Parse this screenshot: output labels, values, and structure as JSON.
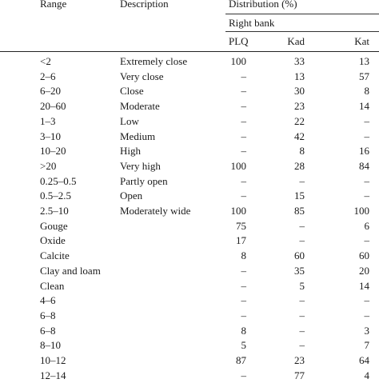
{
  "table": {
    "headers": {
      "range": "Range",
      "description": "Description",
      "distribution": "Distribution (%)",
      "bank": "Right bank",
      "plq": "PLQ",
      "kad": "Kad",
      "kat": "Kat"
    },
    "rows": [
      {
        "range": "<2",
        "description": "Extremely close",
        "plq": "100",
        "kad": "33",
        "kat": "13"
      },
      {
        "range": "2–6",
        "description": "Very close",
        "plq": "–",
        "kad": "13",
        "kat": "57"
      },
      {
        "range": "6–20",
        "description": "Close",
        "plq": "–",
        "kad": "30",
        "kat": "8"
      },
      {
        "range": "20–60",
        "description": "Moderate",
        "plq": "–",
        "kad": "23",
        "kat": "14"
      },
      {
        "range": "1–3",
        "description": "Low",
        "plq": "–",
        "kad": "22",
        "kat": "–"
      },
      {
        "range": "3–10",
        "description": "Medium",
        "plq": "–",
        "kad": "42",
        "kat": "–"
      },
      {
        "range": "10–20",
        "description": "High",
        "plq": "–",
        "kad": "8",
        "kat": "16"
      },
      {
        "range": ">20",
        "description": "Very high",
        "plq": "100",
        "kad": "28",
        "kat": "84"
      },
      {
        "range": "0.25–0.5",
        "description": "Partly open",
        "plq": "–",
        "kad": "–",
        "kat": "–"
      },
      {
        "range": "0.5–2.5",
        "description": "Open",
        "plq": "–",
        "kad": "15",
        "kat": "–"
      },
      {
        "range": "2.5–10",
        "description": "Moderately wide",
        "plq": "100",
        "kad": "85",
        "kat": "100"
      },
      {
        "range": "Gouge",
        "description": "",
        "plq": "75",
        "kad": "–",
        "kat": "6"
      },
      {
        "range": "Oxide",
        "description": "",
        "plq": "17",
        "kad": "–",
        "kat": "–"
      },
      {
        "range": "Calcite",
        "description": "",
        "plq": "8",
        "kad": "60",
        "kat": "60"
      },
      {
        "range": "Clay and loam",
        "description": "",
        "plq": "–",
        "kad": "35",
        "kat": "20"
      },
      {
        "range": "Clean",
        "description": "",
        "plq": "–",
        "kad": "5",
        "kat": "14"
      },
      {
        "range": "4–6",
        "description": "",
        "plq": "–",
        "kad": "–",
        "kat": "–"
      },
      {
        "range": "6–8",
        "description": "",
        "plq": "–",
        "kad": "–",
        "kat": "–"
      },
      {
        "range": "6–8",
        "description": "",
        "plq": "8",
        "kad": "–",
        "kat": "3"
      },
      {
        "range": "8–10",
        "description": "",
        "plq": "5",
        "kad": "–",
        "kat": "7"
      },
      {
        "range": "10–12",
        "description": "",
        "plq": "87",
        "kad": "23",
        "kat": "64"
      },
      {
        "range": "12–14",
        "description": "",
        "plq": "–",
        "kad": "77",
        "kat": "4"
      }
    ]
  }
}
